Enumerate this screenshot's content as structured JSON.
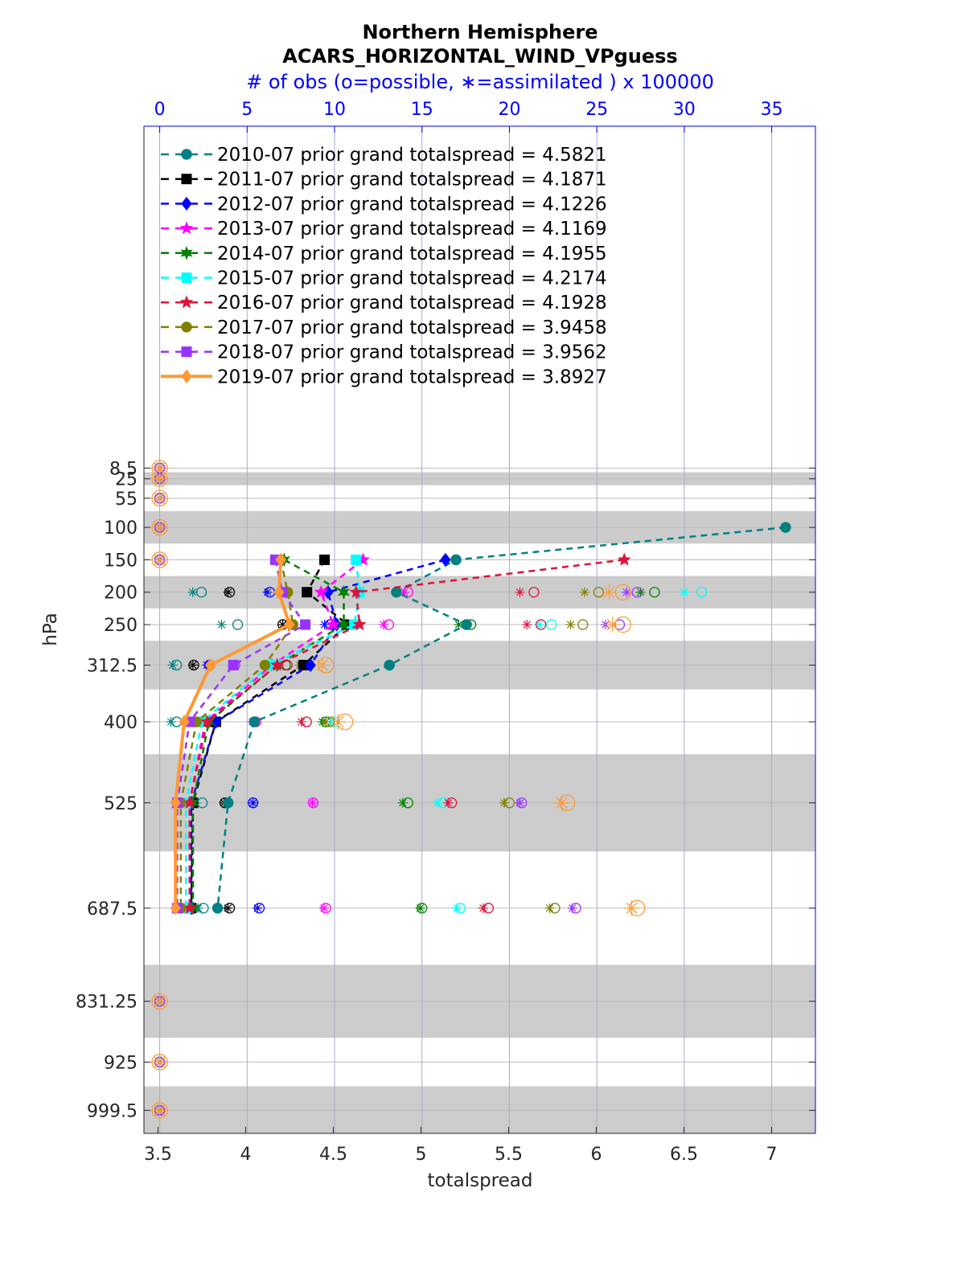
{
  "chart_data": {
    "type": "line",
    "title": "Northern Hemisphere",
    "subtitle": "ACARS_HORIZONTAL_WIND_VPguess",
    "top_axis_label": "# of obs (o=possible, ∗=assimilated ) x 100000",
    "xlabel": "totalspread",
    "ylabel": "hPa",
    "xlim": [
      3.42,
      7.25
    ],
    "x_ticks": [
      "3.5",
      "4",
      "4.5",
      "5",
      "5.5",
      "6",
      "6.5",
      "7"
    ],
    "x_tick_values": [
      3.5,
      4,
      4.5,
      5,
      5.5,
      6,
      6.5,
      7
    ],
    "top_xlim": [
      -0.9,
      37.5
    ],
    "top_ticks": [
      "0",
      "5",
      "10",
      "15",
      "20",
      "25",
      "30",
      "35"
    ],
    "top_tick_values": [
      0,
      5,
      10,
      15,
      20,
      25,
      30,
      35
    ],
    "ylim": [
      -519,
      1035
    ],
    "y_reversed": true,
    "y_ticks": [
      "8.5",
      "25",
      "55",
      "100",
      "150",
      "200",
      "250",
      "312.5",
      "400",
      "525",
      "687.5",
      "831.25",
      "925",
      "999.5"
    ],
    "levels": [
      8.5,
      25,
      55,
      100,
      150,
      200,
      250,
      312.5,
      400,
      525,
      687.5,
      831.25,
      925,
      999.5
    ],
    "shaded_layers_hPa": [
      [
        15,
        35
      ],
      [
        75,
        125
      ],
      [
        175,
        225
      ],
      [
        275,
        350
      ],
      [
        450,
        600
      ],
      [
        775,
        887.5
      ],
      [
        962.5,
        1035
      ]
    ],
    "grid": true,
    "legend_position": "top-left",
    "series": [
      {
        "name": "2010-07 prior grand totalspread = 4.5821",
        "color": "#008080",
        "marker": "circle",
        "style": "dashed",
        "levels": [
          100,
          150,
          200,
          250,
          312.5,
          400,
          525,
          687.5
        ],
        "values": [
          7.08,
          5.2,
          4.86,
          5.26,
          4.82,
          4.05,
          3.9,
          3.84
        ],
        "obs_possible": [
          0,
          0,
          0,
          0,
          0,
          2.39,
          4.46,
          0.97,
          0.97,
          2.44,
          2.5,
          0,
          0,
          0
        ],
        "obs_assimilated": [
          0,
          0,
          0,
          0,
          0,
          1.89,
          3.54,
          0.74,
          0.64,
          2.07,
          2.2,
          0,
          0,
          0
        ]
      },
      {
        "name": "2011-07 prior grand totalspread = 4.1871",
        "color": "#000000",
        "marker": "square",
        "style": "dashed",
        "levels": [
          150,
          200,
          250,
          312.5,
          400,
          525,
          687.5
        ],
        "values": [
          4.45,
          4.35,
          4.58,
          4.33,
          3.83,
          3.7,
          3.69
        ],
        "obs_possible": [
          0,
          0,
          0,
          0,
          0,
          4.0,
          7.04,
          1.95,
          2.0,
          3.73,
          4.0,
          0,
          0,
          0
        ],
        "obs_assimilated": [
          0,
          0,
          0,
          0,
          0,
          3.91,
          7.04,
          1.9,
          1.9,
          3.68,
          3.9,
          0,
          0,
          0
        ]
      },
      {
        "name": "2012-07 prior grand totalspread = 4.1226",
        "color": "#0000ff",
        "marker": "diamond",
        "style": "dashed",
        "levels": [
          150,
          200,
          250,
          312.5,
          400,
          525,
          687.5
        ],
        "values": [
          5.14,
          4.47,
          4.52,
          4.37,
          3.83,
          3.69,
          3.69
        ],
        "obs_possible": [
          0,
          0,
          0,
          0,
          0,
          6.3,
          9.75,
          2.85,
          3.0,
          5.34,
          5.7,
          0,
          0,
          0
        ],
        "obs_assimilated": [
          0,
          0,
          0,
          0,
          0,
          6.16,
          9.43,
          2.7,
          2.9,
          5.34,
          5.6,
          0,
          0,
          0
        ]
      },
      {
        "name": "2013-07 prior grand totalspread = 4.1169",
        "color": "#ff00ff",
        "marker": "star",
        "style": "dashed",
        "levels": [
          150,
          200,
          250,
          312.5,
          400,
          525,
          687.5
        ],
        "values": [
          4.67,
          4.43,
          4.5,
          4.15,
          3.77,
          3.68,
          3.68
        ],
        "obs_possible": [
          0,
          0,
          0,
          0,
          0,
          14.2,
          13.1,
          6.4,
          5.5,
          8.78,
          9.5,
          0,
          0,
          0
        ],
        "obs_assimilated": [
          0,
          0,
          0,
          0,
          0,
          14.0,
          12.8,
          6.2,
          5.3,
          8.74,
          9.4,
          0,
          0,
          0
        ]
      },
      {
        "name": "2014-07 prior grand totalspread = 4.1955",
        "color": "#008000",
        "marker": "hexagram",
        "style": "dashed",
        "levels": [
          150,
          200,
          250,
          312.5,
          400,
          525,
          687.5
        ],
        "values": [
          4.22,
          4.56,
          4.56,
          4.18,
          3.79,
          3.7,
          3.7
        ],
        "obs_possible": [
          0,
          0,
          0,
          0,
          0,
          28.3,
          17.8,
          7.2,
          9.5,
          14.2,
          15.0,
          0,
          0,
          0
        ],
        "obs_assimilated": [
          0,
          0,
          0,
          0,
          0,
          27.5,
          17.1,
          6.6,
          9.3,
          13.9,
          14.9,
          0,
          0,
          0
        ]
      },
      {
        "name": "2015-07 prior grand totalspread = 4.2174",
        "color": "#00ffff",
        "marker": "square",
        "style": "dashed",
        "levels": [
          150,
          200,
          250,
          312.5,
          400,
          525,
          687.5
        ],
        "values": [
          4.63,
          4.65,
          4.62,
          4.14,
          3.75,
          3.66,
          3.66
        ],
        "obs_possible": [
          0,
          0,
          0,
          0,
          0,
          31.0,
          22.4,
          8.3,
          10.0,
          16.2,
          17.2,
          0,
          0,
          0
        ],
        "obs_assimilated": [
          0,
          0,
          0,
          0,
          0,
          30.0,
          21.7,
          8.1,
          9.8,
          15.9,
          17.0,
          0,
          0,
          0
        ]
      },
      {
        "name": "2016-07 prior grand totalspread = 4.1928",
        "color": "#dc143c",
        "marker": "star",
        "style": "dashed",
        "levels": [
          150,
          200,
          250,
          312.5,
          400,
          525,
          687.5
        ],
        "values": [
          6.16,
          4.63,
          4.65,
          4.18,
          3.78,
          3.68,
          3.68
        ],
        "obs_possible": [
          0,
          0,
          0,
          0,
          0,
          21.4,
          21.8,
          7.3,
          8.4,
          16.7,
          18.8,
          0,
          0,
          0
        ],
        "obs_assimilated": [
          0,
          0,
          0,
          0,
          0,
          20.6,
          21.0,
          6.8,
          8.1,
          16.5,
          18.5,
          0,
          0,
          0
        ]
      },
      {
        "name": "2017-07 prior grand totalspread = 3.9458",
        "color": "#808000",
        "marker": "circle",
        "style": "dashed",
        "levels": [
          150,
          200,
          250,
          312.5,
          400,
          525,
          687.5
        ],
        "values": [
          4.2,
          4.24,
          4.27,
          4.11,
          3.72,
          3.63,
          3.63
        ],
        "obs_possible": [
          0,
          0,
          0,
          0,
          0,
          25.1,
          24.2,
          8.2,
          9.7,
          20.0,
          22.6,
          0,
          0,
          0
        ],
        "obs_assimilated": [
          0,
          0,
          0,
          0,
          0,
          24.3,
          23.5,
          8.0,
          9.5,
          19.7,
          22.3,
          0,
          0,
          0
        ]
      },
      {
        "name": "2018-07 prior grand totalspread = 3.9562",
        "color": "#9932ff",
        "marker": "square",
        "style": "dashed",
        "levels": [
          150,
          200,
          250,
          312.5,
          400,
          525,
          687.5
        ],
        "values": [
          4.17,
          4.21,
          4.34,
          3.93,
          3.68,
          3.61,
          3.61
        ],
        "obs_possible": [
          0,
          0,
          0,
          0,
          0,
          27.3,
          26.3,
          4.3,
          2.7,
          20.7,
          23.8,
          0,
          0,
          0
        ],
        "obs_assimilated": [
          0,
          0,
          0,
          0,
          0,
          26.7,
          25.5,
          4.2,
          2.6,
          20.6,
          23.6,
          0,
          0,
          0
        ]
      },
      {
        "name": "2019-07 prior grand totalspread = 3.8927",
        "color": "#ff9933",
        "marker": "diamond",
        "style": "solid",
        "levels": [
          150,
          200,
          250,
          312.5,
          400,
          525,
          687.5
        ],
        "values": [
          4.2,
          4.19,
          4.25,
          3.8,
          3.65,
          3.6,
          3.6
        ],
        "obs_possible": [
          0,
          0,
          0,
          0,
          0,
          26.5,
          26.5,
          9.5,
          10.6,
          23.3,
          27.3,
          0,
          0,
          0
        ],
        "obs_assimilated": [
          0,
          0,
          0,
          0,
          0,
          25.7,
          25.9,
          9.3,
          10.2,
          23.0,
          27.0,
          0,
          0,
          0
        ]
      }
    ]
  }
}
